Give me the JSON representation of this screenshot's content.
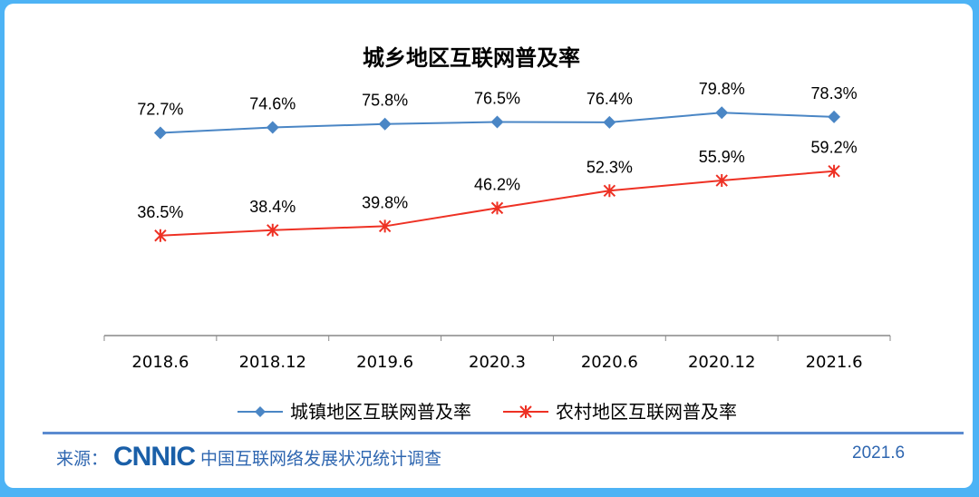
{
  "chart_data": {
    "type": "line",
    "title": "城乡地区互联网普及率",
    "categories": [
      "2018.6",
      "2018.12",
      "2019.6",
      "2020.3",
      "2020.6",
      "2020.12",
      "2021.6"
    ],
    "series": [
      {
        "name": "城镇地区互联网普及率",
        "values": [
          72.7,
          74.6,
          75.8,
          76.5,
          76.4,
          79.8,
          78.3
        ],
        "labels": [
          "72.7%",
          "74.6%",
          "75.8%",
          "76.5%",
          "76.4%",
          "79.8%",
          "78.3%"
        ],
        "color": "#4a86c5",
        "marker": "diamond"
      },
      {
        "name": "农村地区互联网普及率",
        "values": [
          36.5,
          38.4,
          39.8,
          46.2,
          52.3,
          55.9,
          59.2
        ],
        "labels": [
          "36.5%",
          "38.4%",
          "39.8%",
          "46.2%",
          "52.3%",
          "55.9%",
          "59.2%"
        ],
        "color": "#ee3124",
        "marker": "star"
      }
    ],
    "legend": "bottom"
  },
  "footer": {
    "source_label": "来源：",
    "logo": "CNNIC",
    "source_name": "中国互联网络发展状况统计调查",
    "date": "2021.6"
  }
}
